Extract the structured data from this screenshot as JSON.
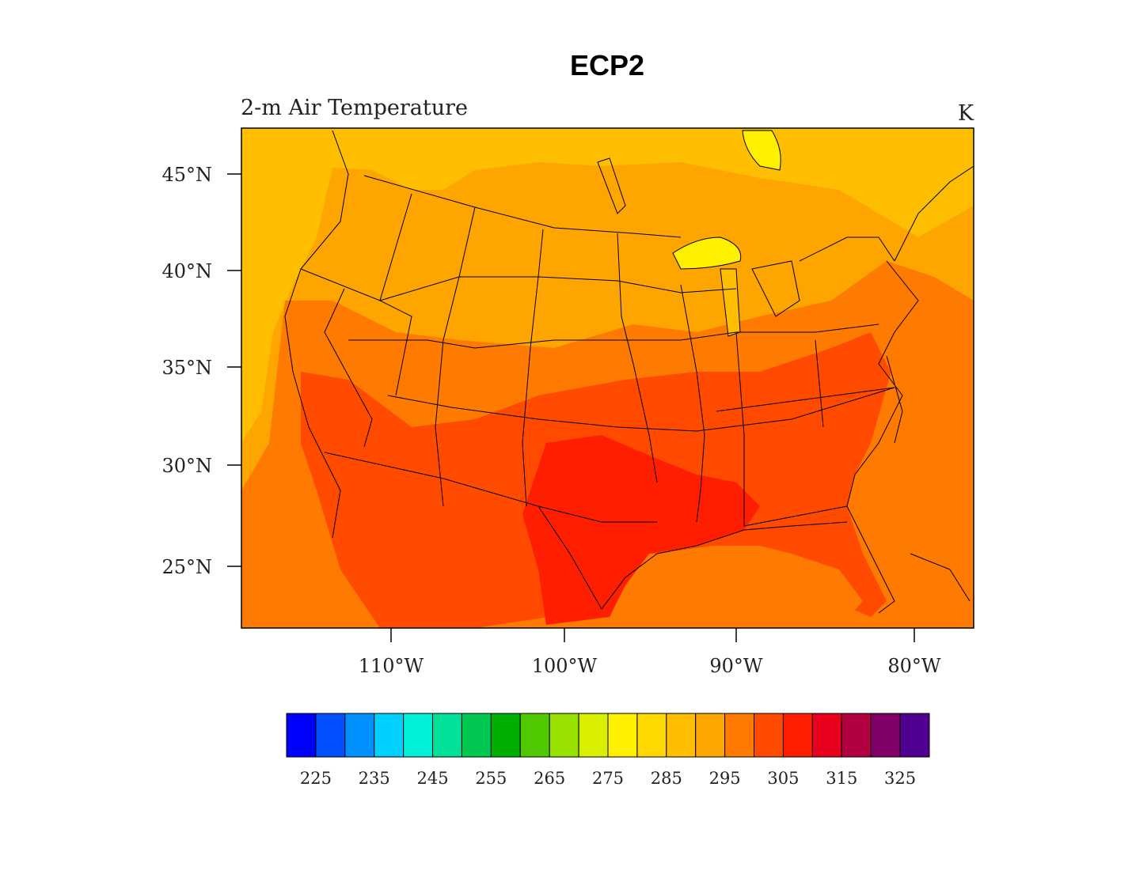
{
  "title": "ECP2",
  "left_subtitle": "2-m Air Temperature",
  "units": "K",
  "axes": {
    "lat_ticks": [
      "45°N",
      "40°N",
      "35°N",
      "30°N",
      "25°N"
    ],
    "lon_ticks": [
      "110°W",
      "100°W",
      "90°W",
      "80°W"
    ]
  },
  "colorbar": {
    "labels": [
      "225",
      "235",
      "245",
      "255",
      "265",
      "275",
      "285",
      "295",
      "305",
      "315",
      "325"
    ],
    "colors": [
      "#0000ff",
      "#0050ff",
      "#0090ff",
      "#00d0ff",
      "#00f0d8",
      "#00e098",
      "#00c850",
      "#00b000",
      "#50c800",
      "#98e000",
      "#d8f000",
      "#fff000",
      "#ffd800",
      "#ffbe00",
      "#ffa500",
      "#ff7a00",
      "#ff4a00",
      "#ff1e00",
      "#e8001e",
      "#b00040",
      "#800068",
      "#500090"
    ]
  },
  "map_colors": {
    "ocean_west": "#ffa500",
    "north": "#ffbe00",
    "mid": "#ff7a00",
    "south": "#ff4a00",
    "hot": "#ff1e00",
    "lake": "#fff000"
  }
}
